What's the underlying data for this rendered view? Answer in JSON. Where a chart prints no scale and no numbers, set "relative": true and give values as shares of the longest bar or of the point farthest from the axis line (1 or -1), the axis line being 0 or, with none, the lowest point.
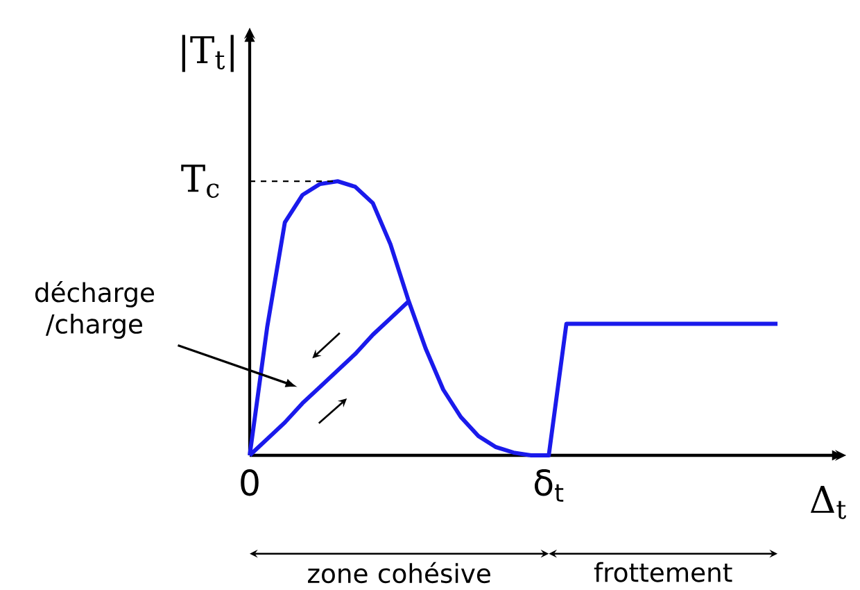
{
  "chart_data": {
    "type": "line",
    "relative": true,
    "ylabel": "|T$_{t}$|",
    "xlabel": "Δ$_{t}$",
    "categories": [
      "0",
      null,
      null,
      null,
      null,
      null,
      null,
      null,
      null,
      null,
      null,
      null,
      null,
      null,
      null,
      null,
      null,
      "δ$_{t}$",
      null,
      null,
      null,
      null,
      null,
      null,
      null,
      null,
      null,
      null,
      null,
      null,
      null
    ],
    "series": [
      {
        "color": "#1a1aeb",
        "values": [
          0,
          0.47,
          0.85,
          0.95,
          0.99,
          1,
          0.98,
          0.92,
          0.77,
          0.57,
          0.39,
          0.24,
          0.14,
          0.07,
          0.03,
          0.01,
          0,
          0,
          0.48,
          0.48,
          0.48,
          0.48,
          0.48,
          0.48,
          0.48,
          0.48,
          0.48,
          0.48,
          0.48,
          0.48,
          0.48
        ]
      },
      {
        "color": "#1a1aeb",
        "values": [
          0,
          0.06,
          0.12,
          0.19,
          0.25,
          0.31,
          0.37,
          0.44,
          0.5,
          0.56,
          null,
          null,
          null,
          null,
          null,
          null,
          null,
          null,
          null,
          null,
          null,
          null,
          null,
          null,
          null,
          null,
          null,
          null,
          null,
          null,
          null
        ]
      }
    ],
    "ref_lines": [
      {
        "axis": "y",
        "value": 1,
        "label": "T$_{c}$",
        "line_style": "dashed"
      }
    ],
    "annotations": [
      "décharge /charge",
      "zone cohésive",
      "frottement"
    ]
  }
}
